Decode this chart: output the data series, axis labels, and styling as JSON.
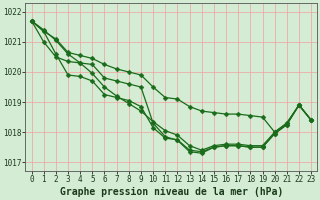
{
  "xlabel": "Graphe pression niveau de la mer (hPa)",
  "xlabel_fontsize": 7,
  "xlim": [
    -0.5,
    23.5
  ],
  "ylim": [
    1016.7,
    1022.3
  ],
  "yticks": [
    1017,
    1018,
    1019,
    1020,
    1021,
    1022
  ],
  "xticks": [
    0,
    1,
    2,
    3,
    4,
    5,
    6,
    7,
    8,
    9,
    10,
    11,
    12,
    13,
    14,
    15,
    16,
    17,
    18,
    19,
    20,
    21,
    22,
    23
  ],
  "bg_color": "#d4ecd4",
  "grid_color": "#f0a0a0",
  "line_color": "#1a6b1a",
  "lines": [
    [
      1021.7,
      1021.35,
      1021.1,
      1020.65,
      1020.55,
      1020.45,
      1020.25,
      1020.1,
      1020.0,
      1019.9,
      1019.5,
      1019.15,
      1019.1,
      1018.85,
      1018.7,
      1018.65,
      1018.6,
      1018.6,
      1018.55,
      1018.5,
      1018.0,
      1018.3,
      1018.9,
      1018.4
    ],
    [
      1021.7,
      1021.4,
      1021.05,
      1020.6,
      1020.3,
      1019.95,
      1019.5,
      1019.2,
      1018.95,
      1018.7,
      1018.35,
      1018.05,
      1017.9,
      1017.55,
      1017.4,
      1017.55,
      1017.6,
      1017.6,
      1017.55,
      1017.55,
      1018.0,
      1018.3,
      1018.9,
      1018.4
    ],
    [
      1021.7,
      1021.35,
      1020.6,
      1019.9,
      1019.85,
      1019.7,
      1019.25,
      1019.15,
      1019.05,
      1018.85,
      1018.15,
      1017.8,
      1017.75,
      1017.4,
      1017.35,
      1017.5,
      1017.55,
      1017.55,
      1017.5,
      1017.5,
      1017.95,
      1018.25,
      1018.9,
      1018.4
    ],
    [
      1021.7,
      1021.0,
      1020.5,
      1020.35,
      1020.3,
      1020.25,
      1019.8,
      1019.7,
      1019.6,
      1019.5,
      1018.3,
      1017.85,
      1017.73,
      1017.35,
      1017.3,
      1017.5,
      1017.55,
      1017.55,
      1017.5,
      1017.5,
      1017.95,
      1018.25,
      1018.9,
      1018.4
    ]
  ],
  "line_width": 0.9,
  "marker_size": 2.5,
  "tick_fontsize": 5.5,
  "label_color": "#1a3a1a"
}
